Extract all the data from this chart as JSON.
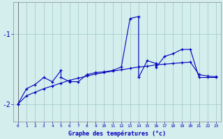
{
  "xlabel": "Graphe des températures (°c)",
  "background_color": "#d4eeee",
  "line_color": "#0000bb",
  "grid_color": "#a8cccc",
  "xlim": [
    -0.5,
    23.5
  ],
  "ylim": [
    -2.25,
    -0.55
  ],
  "yticks": [
    -2,
    -1
  ],
  "xticks": [
    0,
    1,
    2,
    3,
    4,
    5,
    6,
    7,
    8,
    9,
    10,
    11,
    12,
    13,
    14,
    15,
    16,
    17,
    18,
    19,
    20,
    21,
    22,
    23
  ],
  "x_main": [
    0,
    1,
    2,
    3,
    4,
    5,
    5,
    6,
    7,
    8,
    9,
    10,
    11,
    12,
    13,
    14,
    14,
    15,
    16,
    16,
    17,
    18,
    19,
    20,
    21,
    22,
    23
  ],
  "y_main": [
    -2.0,
    -1.78,
    -1.72,
    -1.62,
    -1.68,
    -1.52,
    -1.62,
    -1.68,
    -1.68,
    -1.58,
    -1.55,
    -1.54,
    -1.52,
    -1.47,
    -0.78,
    -0.75,
    -1.62,
    -1.38,
    -1.42,
    -1.48,
    -1.32,
    -1.28,
    -1.22,
    -1.22,
    -1.62,
    -1.62,
    -1.62
  ],
  "x_trend": [
    0,
    1,
    2,
    3,
    4,
    5,
    6,
    7,
    8,
    9,
    10,
    11,
    12,
    13,
    14,
    15,
    16,
    17,
    18,
    19,
    20,
    21,
    22,
    23
  ],
  "y_trend": [
    -2.0,
    -1.88,
    -1.83,
    -1.78,
    -1.74,
    -1.7,
    -1.66,
    -1.63,
    -1.6,
    -1.57,
    -1.55,
    -1.53,
    -1.51,
    -1.49,
    -1.47,
    -1.46,
    -1.44,
    -1.43,
    -1.42,
    -1.41,
    -1.4,
    -1.58,
    -1.6,
    -1.61
  ]
}
